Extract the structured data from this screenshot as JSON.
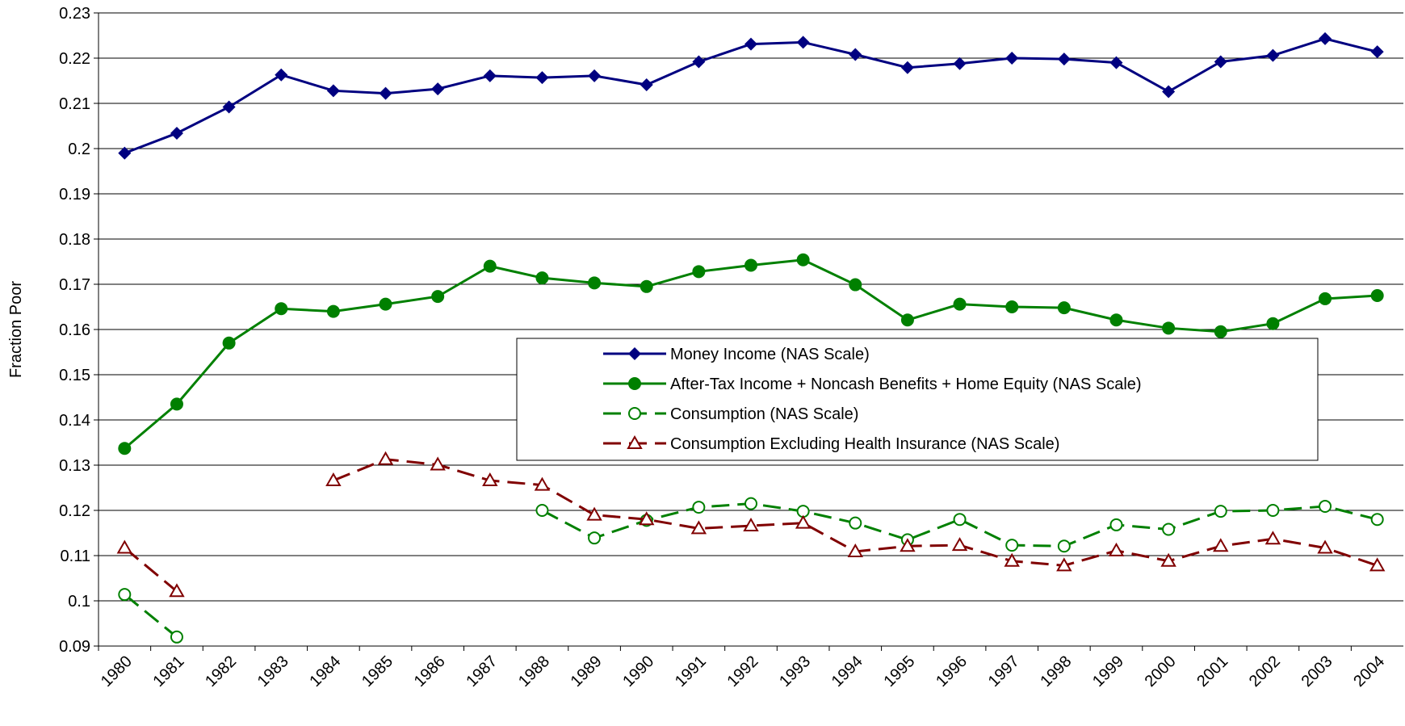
{
  "chart_data": {
    "type": "line",
    "y_label": "Fraction Poor",
    "categories": [
      "1980",
      "1981",
      "1982",
      "1983",
      "1984",
      "1985",
      "1986",
      "1987",
      "1988",
      "1989",
      "1990",
      "1991",
      "1992",
      "1993",
      "1994",
      "1995",
      "1996",
      "1997",
      "1998",
      "1999",
      "2000",
      "2001",
      "2002",
      "2003",
      "2004"
    ],
    "ylim": [
      0.09,
      0.23
    ],
    "yticks": [
      0.09,
      0.1,
      0.11,
      0.12,
      0.13,
      0.14,
      0.15,
      0.16,
      0.17,
      0.18,
      0.19,
      0.2,
      0.21,
      0.22,
      0.23
    ],
    "grid": true,
    "legend": "center-right",
    "series": [
      {
        "name": "Money Income (NAS Scale)",
        "color": "#000080",
        "marker": "diamond",
        "dashed": false,
        "values": [
          0.199,
          0.2034,
          0.2092,
          0.2163,
          0.2128,
          0.2122,
          0.2132,
          0.2161,
          0.2157,
          0.2161,
          0.2141,
          0.2192,
          0.2231,
          0.2235,
          0.2208,
          0.2179,
          0.2188,
          0.22,
          0.2198,
          0.219,
          0.2126,
          0.2192,
          0.2206,
          0.2243,
          0.2214
        ]
      },
      {
        "name": "After-Tax Income + Noncash Benefits + Home Equity (NAS Scale)",
        "color": "#008000",
        "marker": "circle",
        "dashed": false,
        "values": [
          0.1337,
          0.1435,
          0.157,
          0.1646,
          0.164,
          0.1656,
          0.1673,
          0.174,
          0.1714,
          0.1703,
          0.1695,
          0.1728,
          0.1742,
          0.1754,
          0.1699,
          0.1621,
          0.1656,
          0.165,
          0.1648,
          0.1621,
          0.1603,
          0.1595,
          0.1613,
          0.1668,
          0.1675
        ]
      },
      {
        "name": "Consumption (NAS Scale)",
        "color": "#008000",
        "marker": "open-circle",
        "dashed": true,
        "values": [
          0.1014,
          0.092,
          null,
          null,
          null,
          null,
          null,
          null,
          0.12,
          0.1139,
          0.1178,
          0.1207,
          0.1215,
          0.1198,
          0.1172,
          0.1135,
          0.118,
          0.1123,
          0.1121,
          0.1168,
          0.1158,
          0.1198,
          0.12,
          0.1209,
          0.118
        ]
      },
      {
        "name": "Consumption Excluding Health Insurance (NAS Scale)",
        "color": "#800000",
        "marker": "open-triangle",
        "dashed": true,
        "values": [
          0.1117,
          0.1021,
          null,
          null,
          0.1266,
          0.1313,
          0.1301,
          0.1266,
          0.1256,
          0.119,
          0.118,
          0.116,
          0.1166,
          0.1172,
          0.1109,
          0.1121,
          0.1123,
          0.1088,
          0.1078,
          0.1111,
          0.1088,
          0.1121,
          0.1137,
          0.1117,
          0.1078
        ]
      }
    ]
  }
}
